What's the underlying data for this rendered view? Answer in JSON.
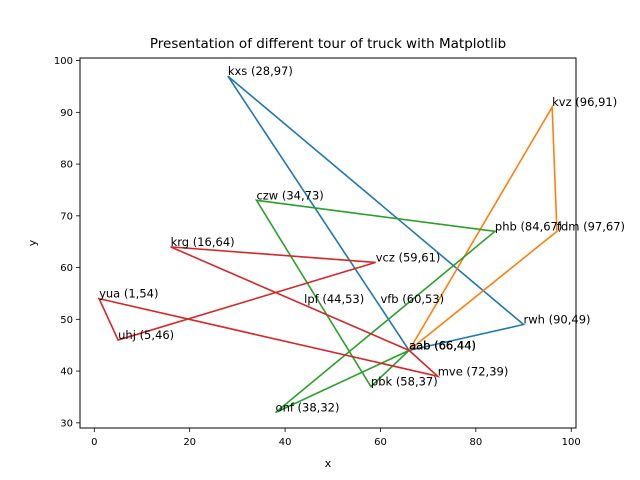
{
  "chart_data": {
    "type": "line",
    "title": "Presentation of different tour of truck with Matplotlib",
    "xlabel": "x",
    "ylabel": "y",
    "xlim": [
      -3,
      101
    ],
    "ylim": [
      29,
      100.5
    ],
    "xticks": [
      0,
      20,
      40,
      60,
      80,
      100
    ],
    "yticks": [
      30,
      40,
      50,
      60,
      70,
      80,
      90,
      100
    ],
    "grid": false,
    "legend": "none",
    "series": [
      {
        "color": "#1f77b4",
        "points": [
          {
            "label": "aab (66,44)",
            "x": 66,
            "y": 44
          },
          {
            "label": "kxs (28,97)",
            "x": 28,
            "y": 97
          },
          {
            "label": "rwh (90,49)",
            "x": 90,
            "y": 49
          },
          {
            "label": "aab (66,44)",
            "x": 66,
            "y": 44
          }
        ]
      },
      {
        "color": "#ff7f0e",
        "points": [
          {
            "label": "aab (66,44)",
            "x": 66,
            "y": 44
          },
          {
            "label": "kvz (96,91)",
            "x": 96,
            "y": 91
          },
          {
            "label": "fdm (97,67)",
            "x": 97,
            "y": 67
          },
          {
            "label": "aab (66,44)",
            "x": 66,
            "y": 44
          }
        ]
      },
      {
        "color": "#2ca02c",
        "points": [
          {
            "label": "aab (66,44)",
            "x": 66,
            "y": 44
          },
          {
            "label": "onf (38,32)",
            "x": 38,
            "y": 32
          },
          {
            "label": "phb (84,67)",
            "x": 84,
            "y": 67
          },
          {
            "label": "czw (34,73)",
            "x": 34,
            "y": 73
          },
          {
            "label": "pbk (58,37)",
            "x": 58,
            "y": 37
          },
          {
            "label": "aab (66,44)",
            "x": 66,
            "y": 44
          }
        ]
      },
      {
        "color": "#d62728",
        "points": [
          {
            "label": "aab (66,44)",
            "x": 66,
            "y": 44
          },
          {
            "label": "krg (16,64)",
            "x": 16,
            "y": 64
          },
          {
            "label": "vcz (59,61)",
            "x": 59,
            "y": 61
          },
          {
            "label": "uhj (5,46)",
            "x": 5,
            "y": 46
          },
          {
            "label": "yua (1,54)",
            "x": 1,
            "y": 54
          },
          {
            "label": "mve (72,39)",
            "x": 72,
            "y": 39
          },
          {
            "label": "aab (66,44)",
            "x": 66,
            "y": 44
          }
        ]
      }
    ],
    "annotations": [
      {
        "text": "kxs (28,97)",
        "x": 28,
        "y": 97
      },
      {
        "text": "kvz (96,91)",
        "x": 96,
        "y": 91
      },
      {
        "text": "czw (34,73)",
        "x": 34,
        "y": 73
      },
      {
        "text": "phb (84,67)",
        "x": 84,
        "y": 67
      },
      {
        "text": "fdm (97,67)",
        "x": 97,
        "y": 67
      },
      {
        "text": "krg (16,64)",
        "x": 16,
        "y": 64
      },
      {
        "text": "vcz (59,61)",
        "x": 59,
        "y": 61
      },
      {
        "text": "yua (1,54)",
        "x": 1,
        "y": 54
      },
      {
        "text": "lpf (44,53)",
        "x": 44,
        "y": 53
      },
      {
        "text": "vfb (60,53)",
        "x": 60,
        "y": 53
      },
      {
        "text": "rwh (90,49)",
        "x": 90,
        "y": 49
      },
      {
        "text": "uhj (5,46)",
        "x": 5,
        "y": 46
      },
      {
        "text": "aab (66,44)",
        "x": 66,
        "y": 44
      },
      {
        "text": "aab (66,44)",
        "x": 66,
        "y": 44
      },
      {
        "text": "aab (66,44)",
        "x": 66,
        "y": 44
      },
      {
        "text": "aab (66,44)",
        "x": 66,
        "y": 44
      },
      {
        "text": "mve (72,39)",
        "x": 72,
        "y": 39
      },
      {
        "text": "pbk (58,37)",
        "x": 58,
        "y": 37
      },
      {
        "text": "onf (38,32)",
        "x": 38,
        "y": 32
      }
    ]
  }
}
